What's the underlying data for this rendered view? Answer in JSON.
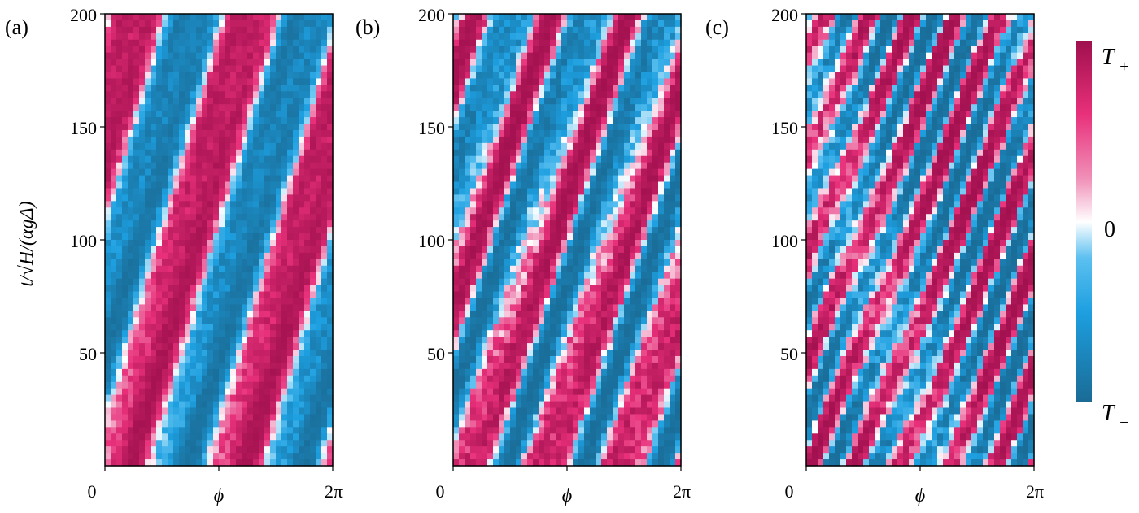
{
  "chart_data": [
    {
      "type": "heatmap",
      "panel_label": "(a)",
      "xlabel": "ϕ",
      "ylabel": "t/√H/(αgΔ)",
      "xlim": [
        0,
        6.2832
      ],
      "ylim": [
        0,
        200
      ],
      "x_tick_labels": [
        "0",
        "2π"
      ],
      "y_tick_labels": [
        "50",
        "100",
        "150",
        "200"
      ],
      "y_ticks": [
        50,
        100,
        150,
        200
      ],
      "pattern": {
        "n_stripes": 2,
        "tilt": 0.55,
        "noise": 0.55
      }
    },
    {
      "type": "heatmap",
      "panel_label": "(b)",
      "xlabel": "ϕ",
      "xlim": [
        0,
        6.2832
      ],
      "ylim": [
        0,
        200
      ],
      "x_tick_labels": [
        "0",
        "2π"
      ],
      "y_tick_labels": [
        "50",
        "100",
        "150",
        "200"
      ],
      "y_ticks": [
        50,
        100,
        150,
        200
      ],
      "pattern": {
        "n_stripes": 3,
        "tilt": 0.7,
        "noise": 0.8
      }
    },
    {
      "type": "heatmap",
      "panel_label": "(c)",
      "xlabel": "ϕ",
      "xlim": [
        0,
        6.2832
      ],
      "ylim": [
        0,
        200
      ],
      "x_tick_labels": [
        "0",
        "2π"
      ],
      "y_tick_labels": [
        "50",
        "100",
        "150",
        "200"
      ],
      "y_ticks": [
        50,
        100,
        150,
        200
      ],
      "pattern": {
        "n_stripes": 5,
        "tilt": 0.85,
        "noise": 0.95
      }
    }
  ],
  "colorbar": {
    "top_label": "T",
    "top_sub": "+",
    "mid_label": "0",
    "bottom_label": "T",
    "bottom_sub": "−",
    "colors": [
      "#1a6b95",
      "#1d9fe0",
      "#5cc0f0",
      "#ffffff",
      "#f090b8",
      "#e8307a",
      "#a0104e"
    ]
  }
}
